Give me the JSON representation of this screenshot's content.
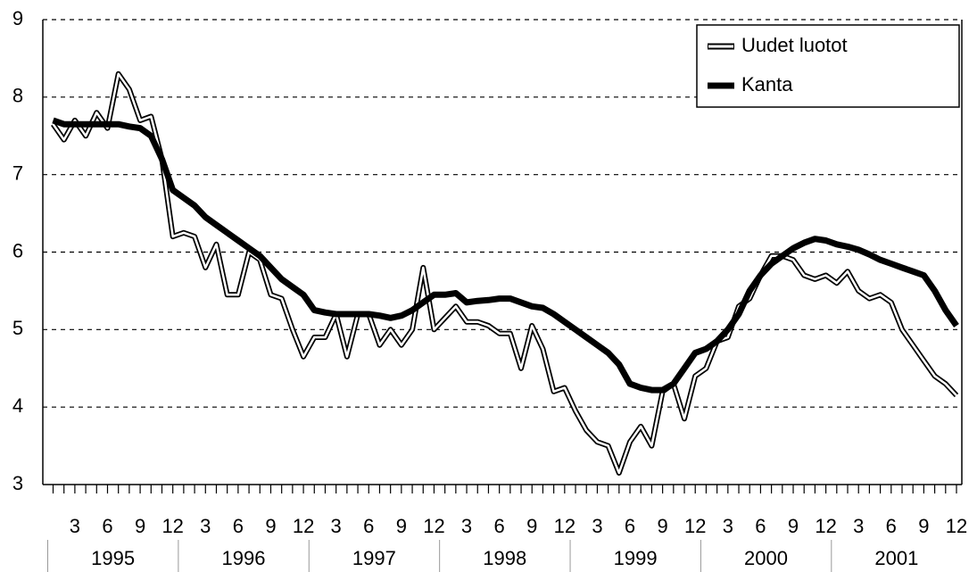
{
  "chart_data": {
    "type": "line",
    "categories": [
      null,
      null,
      "3",
      null,
      null,
      "6",
      null,
      null,
      "9",
      null,
      null,
      "12",
      null,
      null,
      "3",
      null,
      null,
      "6",
      null,
      null,
      "9",
      null,
      null,
      "12",
      null,
      null,
      "3",
      null,
      null,
      "6",
      null,
      null,
      "9",
      null,
      null,
      "12",
      null,
      null,
      "3",
      null,
      null,
      "6",
      null,
      null,
      "9",
      null,
      null,
      "12",
      null,
      null,
      "3",
      null,
      null,
      "6",
      null,
      null,
      "9",
      null,
      null,
      "12",
      null,
      null,
      "3",
      null,
      null,
      "6",
      null,
      null,
      "9",
      null,
      null,
      "12",
      null,
      null,
      "3",
      null,
      null,
      "6",
      null,
      null,
      "9",
      null,
      null,
      "12"
    ],
    "year_labels": [
      "1995",
      "1996",
      "1997",
      "1998",
      "1999",
      "2000",
      "2001"
    ],
    "series": [
      {
        "name": "Uudet luotot",
        "color": "#ffffff",
        "values": [
          7.65,
          7.45,
          7.7,
          7.5,
          7.8,
          7.6,
          8.3,
          8.1,
          7.7,
          7.75,
          7.2,
          6.2,
          6.25,
          6.2,
          5.8,
          6.1,
          5.45,
          5.45,
          6.0,
          5.9,
          5.45,
          5.4,
          5.0,
          4.65,
          4.9,
          4.9,
          5.2,
          4.65,
          5.2,
          5.2,
          4.8,
          5.0,
          4.8,
          5.0,
          5.8,
          5.0,
          5.15,
          5.3,
          5.1,
          5.1,
          5.05,
          4.95,
          4.95,
          4.5,
          5.05,
          4.75,
          4.2,
          4.25,
          3.95,
          3.7,
          3.55,
          3.5,
          3.15,
          3.55,
          3.75,
          3.5,
          4.2,
          4.3,
          3.85,
          4.4,
          4.5,
          4.85,
          4.9,
          5.3,
          5.4,
          5.7,
          5.95,
          5.95,
          5.9,
          5.7,
          5.65,
          5.7,
          5.6,
          5.75,
          5.5,
          5.4,
          5.45,
          5.35,
          5.0,
          4.8,
          4.6,
          4.4,
          4.3,
          4.15
        ]
      },
      {
        "name": "Kanta",
        "color": "#000000",
        "values": [
          7.7,
          7.65,
          7.65,
          7.65,
          7.65,
          7.65,
          7.65,
          7.62,
          7.6,
          7.5,
          7.2,
          6.8,
          6.7,
          6.6,
          6.45,
          6.35,
          6.25,
          6.15,
          6.05,
          5.95,
          5.8,
          5.65,
          5.55,
          5.45,
          5.25,
          5.22,
          5.2,
          5.2,
          5.2,
          5.2,
          5.18,
          5.15,
          5.18,
          5.25,
          5.35,
          5.45,
          5.45,
          5.47,
          5.35,
          5.37,
          5.38,
          5.4,
          5.4,
          5.35,
          5.3,
          5.28,
          5.2,
          5.1,
          5.0,
          4.9,
          4.8,
          4.7,
          4.55,
          4.3,
          4.25,
          4.22,
          4.22,
          4.3,
          4.5,
          4.7,
          4.75,
          4.85,
          5.0,
          5.2,
          5.5,
          5.7,
          5.85,
          5.95,
          6.05,
          6.12,
          6.17,
          6.15,
          6.1,
          6.07,
          6.03,
          5.97,
          5.9,
          5.85,
          5.8,
          5.75,
          5.7,
          5.5,
          5.25,
          5.05
        ]
      }
    ],
    "ylim": [
      3,
      9
    ],
    "yticks": [
      3,
      4,
      5,
      6,
      7,
      8,
      9
    ],
    "grid": true,
    "legend": "top-right"
  }
}
